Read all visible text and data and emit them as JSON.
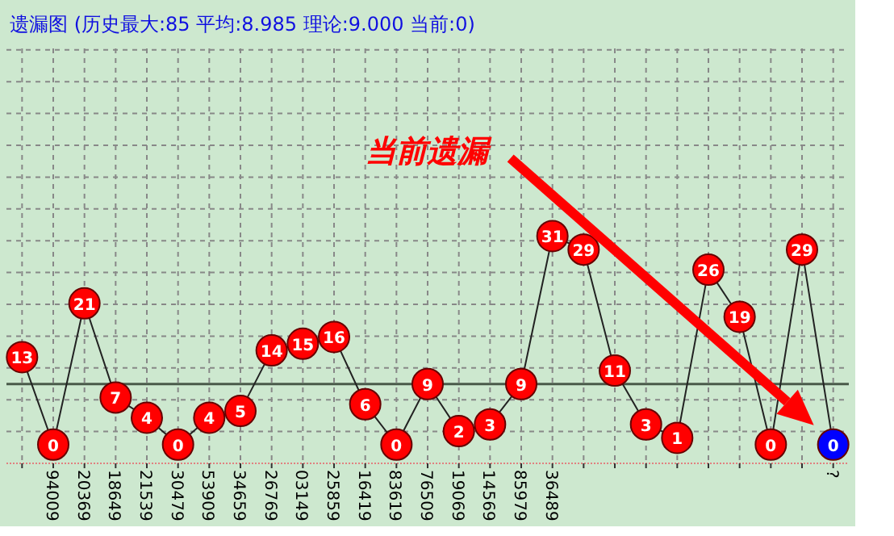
{
  "chart_data": {
    "type": "line",
    "title": "遗漏图 (历史最大:85 平均:8.985 理论:9.000 当前:0)",
    "categories": [
      null,
      "94009",
      "20369",
      "18649",
      "21539",
      "30479",
      "53909",
      "34659",
      "26769",
      "03149",
      "25859",
      "16419",
      "83619",
      "76509",
      "19069",
      "14569",
      "85979",
      "36489",
      null,
      null,
      null,
      null,
      null,
      null,
      null,
      null,
      "?"
    ],
    "series": [
      {
        "color": "#222222",
        "values": [
          13,
          0,
          21,
          7,
          4,
          0,
          4,
          5,
          14,
          15,
          16,
          6,
          0,
          9,
          2,
          3,
          9,
          31,
          29,
          11,
          3,
          1,
          26,
          19,
          0,
          29,
          0
        ],
        "colors": [
          "#ff0000",
          "#ff0000",
          "#ff0000",
          "#ff0000",
          "#ff0000",
          "#ff0000",
          "#ff0000",
          "#ff0000",
          "#ff0000",
          "#ff0000",
          "#ff0000",
          "#ff0000",
          "#ff0000",
          "#ff0000",
          "#ff0000",
          "#ff0000",
          "#ff0000",
          "#ff0000",
          "#ff0000",
          "#ff0000",
          "#ff0000",
          "#ff0000",
          "#ff0000",
          "#ff0000",
          "#ff0000",
          "#ff0000",
          "#0000ff"
        ]
      }
    ],
    "data_labels": true,
    "marker": "circle",
    "grid": true,
    "ref_lines": [
      {
        "axis": "y",
        "value": 9,
        "color": "#4a5a4a"
      }
    ],
    "annotations": [
      "当前遗漏"
    ]
  }
}
